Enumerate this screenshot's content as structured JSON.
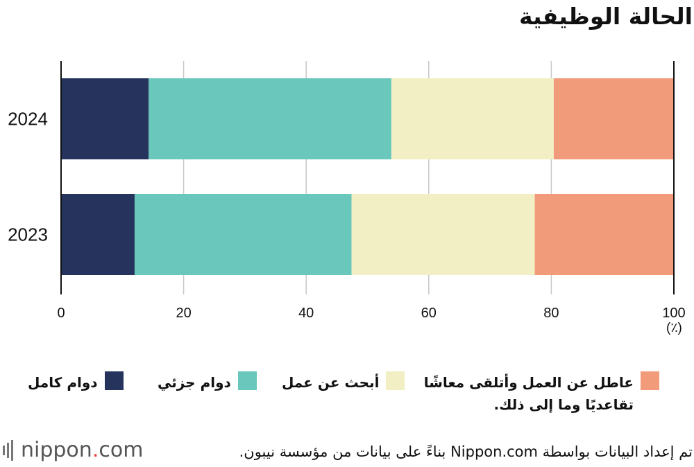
{
  "title": "الحالة الوظيفية",
  "unit": "(٪)",
  "chart_data": {
    "type": "bar",
    "orientation": "horizontal",
    "stacked": true,
    "categories": [
      "2024",
      "2023"
    ],
    "series": [
      {
        "name": "دوام كامل",
        "color": "#26335d",
        "values": [
          14.3,
          12.0
        ]
      },
      {
        "name": "دوام جزئي",
        "color": "#69c7bb",
        "values": [
          39.6,
          35.4
        ]
      },
      {
        "name": "أبحث عن عمل",
        "color": "#f2efc5",
        "values": [
          26.5,
          29.9
        ]
      },
      {
        "name": "عاطل عن العمل وأتلقى معاشًا تقاعديًا وما إلى ذلك.",
        "color": "#f29b7b",
        "values": [
          19.6,
          22.7
        ]
      }
    ],
    "xlim": [
      0,
      100
    ],
    "xticks": [
      "0",
      "20",
      "40",
      "60",
      "80",
      "100"
    ],
    "grid": true
  },
  "legend": {
    "items": [
      {
        "label": "دوام كامل",
        "color": "#26335d"
      },
      {
        "label": "دوام جزئي",
        "color": "#69c7bb"
      },
      {
        "label": "أبحث عن عمل",
        "color": "#f2efc5"
      },
      {
        "label": "عاطل عن العمل وأتلقى معاشًا تقاعديًا وما إلى ذلك.",
        "color": "#f29b7b"
      }
    ]
  },
  "footer": {
    "logo_text": "nippon",
    "logo_dot": ".",
    "logo_suffix": "com",
    "source": "تم إعداد البيانات بواسطة Nippon.com بناءً على بيانات من مؤسسة نيبون."
  }
}
